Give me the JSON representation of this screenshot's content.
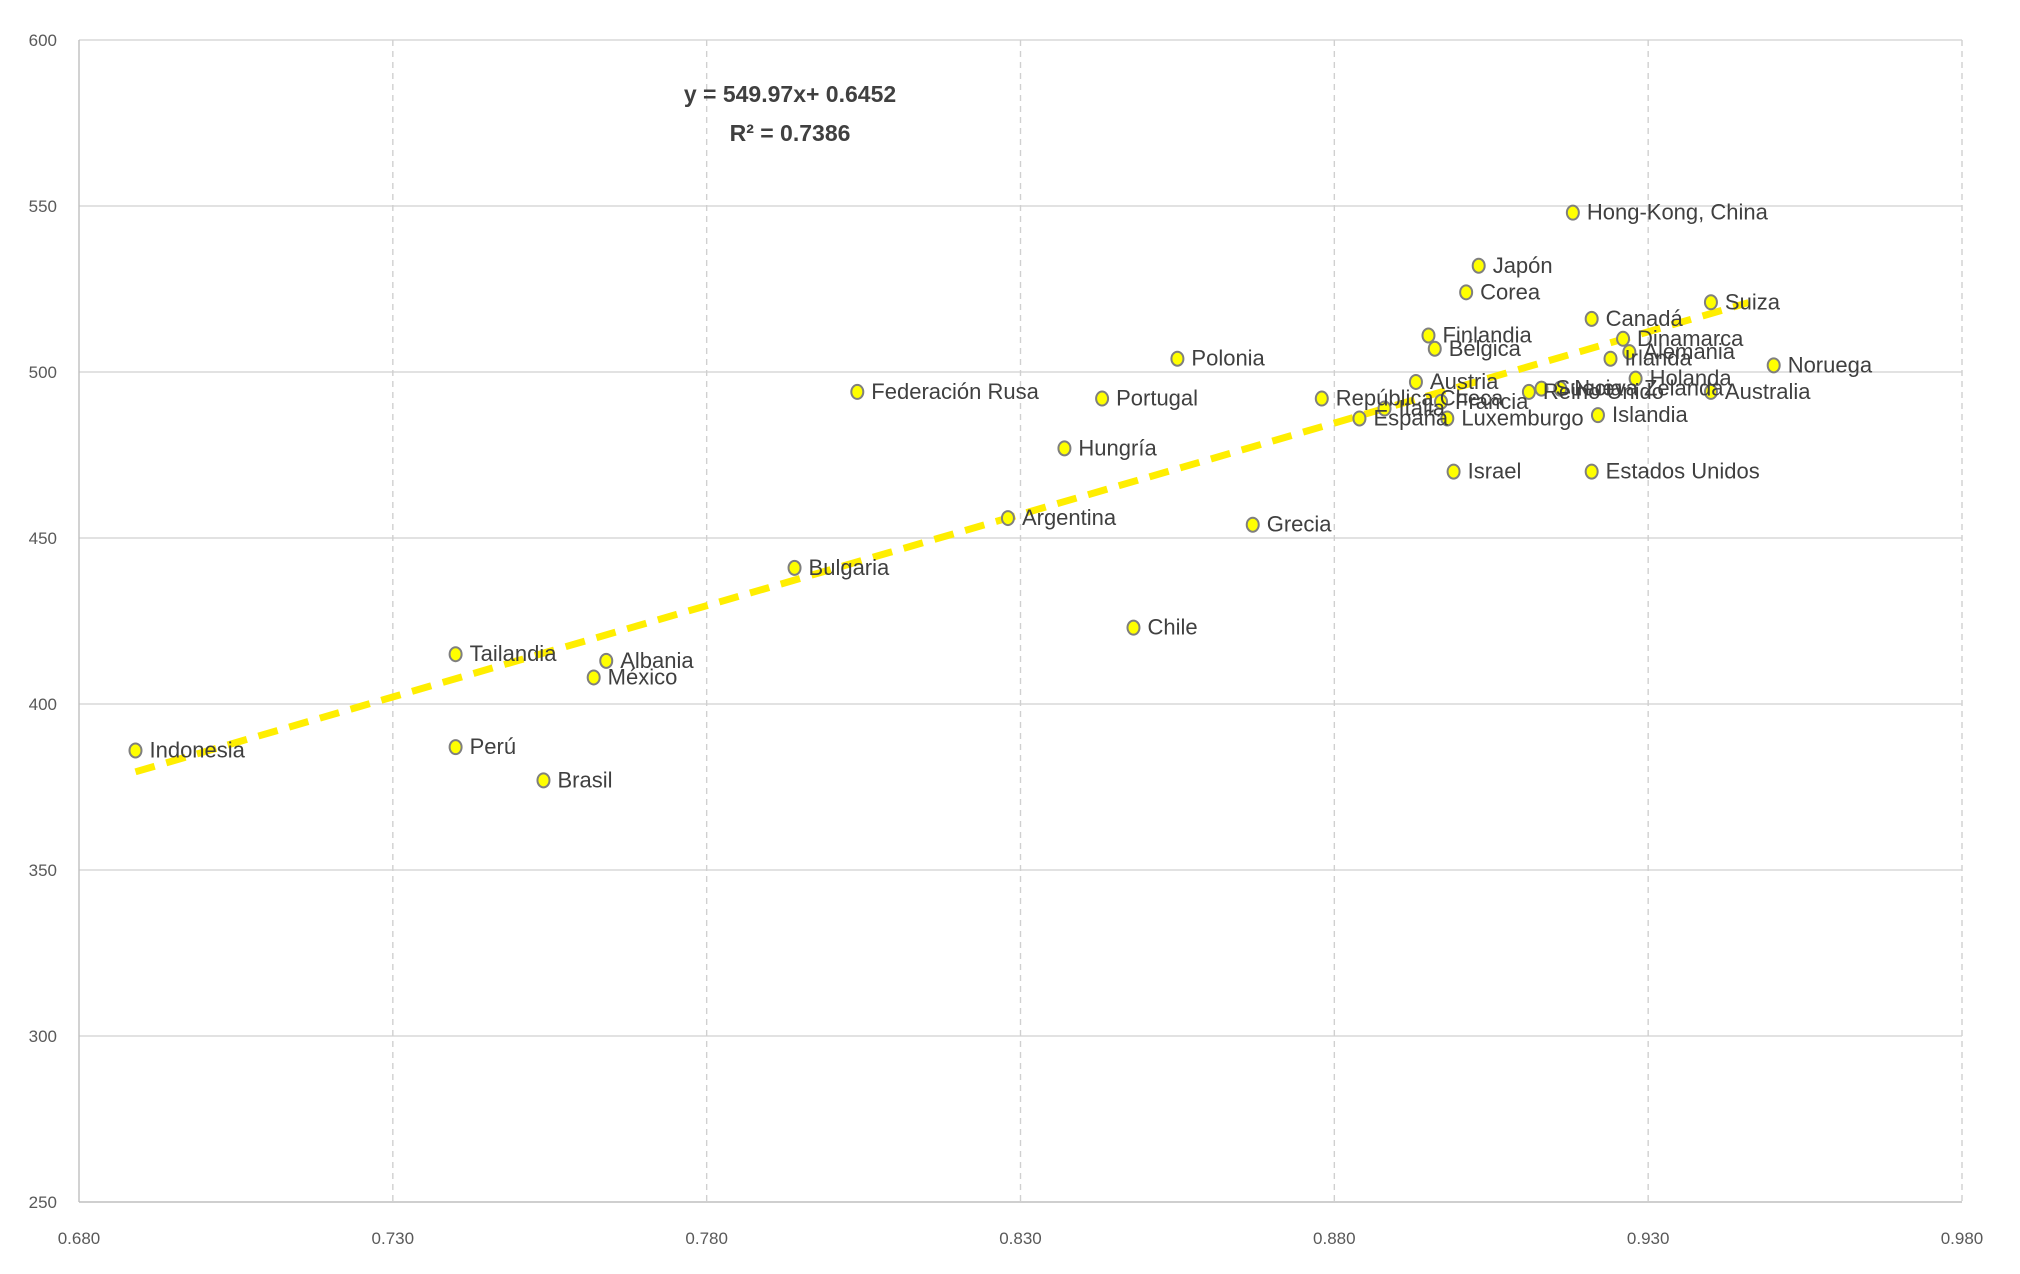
{
  "chart_data": {
    "type": "scatter",
    "title": "",
    "xlabel": "",
    "ylabel": "",
    "xlim": [
      0.68,
      0.98
    ],
    "ylim": [
      250,
      600
    ],
    "x_ticks": [
      "0.680",
      "0.730",
      "0.780",
      "0.830",
      "0.880",
      "0.930",
      "0.980"
    ],
    "y_ticks": [
      "250",
      "300",
      "350",
      "400",
      "450",
      "500",
      "550",
      "600"
    ],
    "x_tick_values": [
      0.68,
      0.73,
      0.78,
      0.83,
      0.88,
      0.93,
      0.98
    ],
    "y_tick_values": [
      250,
      300,
      350,
      400,
      450,
      500,
      550,
      600
    ],
    "grid": {
      "horizontal": true,
      "vertical": true,
      "vertical_style": "dashed"
    },
    "trendline": {
      "type": "linear",
      "equation": "y = 549.97x+ 0.6452",
      "r_squared": "R² = 0.7386",
      "slope": 549.97,
      "intercept": 0.6452,
      "x_range": [
        0.689,
        0.946
      ],
      "color": "#ffee00",
      "style": "dashed"
    },
    "marker_color": "#ffff00",
    "points": [
      {
        "label": "Indonesia",
        "x": 0.689,
        "y": 386
      },
      {
        "label": "Tailandia",
        "x": 0.74,
        "y": 415
      },
      {
        "label": "Perú",
        "x": 0.74,
        "y": 387
      },
      {
        "label": "Brasil",
        "x": 0.754,
        "y": 377
      },
      {
        "label": "Albania",
        "x": 0.764,
        "y": 413
      },
      {
        "label": "México",
        "x": 0.762,
        "y": 408
      },
      {
        "label": "Bulgaria",
        "x": 0.794,
        "y": 441
      },
      {
        "label": "Federación Rusa",
        "x": 0.804,
        "y": 494
      },
      {
        "label": "Argentina",
        "x": 0.828,
        "y": 456
      },
      {
        "label": "Hungría",
        "x": 0.837,
        "y": 477
      },
      {
        "label": "Portugal",
        "x": 0.843,
        "y": 492
      },
      {
        "label": "Chile",
        "x": 0.848,
        "y": 423
      },
      {
        "label": "Polonia",
        "x": 0.855,
        "y": 504
      },
      {
        "label": "Grecia",
        "x": 0.867,
        "y": 454
      },
      {
        "label": "República Checa",
        "x": 0.878,
        "y": 492
      },
      {
        "label": "España",
        "x": 0.884,
        "y": 486
      },
      {
        "label": "Italia",
        "x": 0.888,
        "y": 489
      },
      {
        "label": "Austria",
        "x": 0.893,
        "y": 497
      },
      {
        "label": "Francia",
        "x": 0.897,
        "y": 491
      },
      {
        "label": "Finlandia",
        "x": 0.895,
        "y": 511
      },
      {
        "label": "Bélgica",
        "x": 0.896,
        "y": 507
      },
      {
        "label": "Luxemburgo",
        "x": 0.898,
        "y": 486
      },
      {
        "label": "Israel",
        "x": 0.899,
        "y": 470
      },
      {
        "label": "Corea",
        "x": 0.901,
        "y": 524
      },
      {
        "label": "Japón",
        "x": 0.903,
        "y": 532
      },
      {
        "label": "Reino Unido",
        "x": 0.911,
        "y": 494
      },
      {
        "label": "Suecia",
        "x": 0.913,
        "y": 495
      },
      {
        "label": "Nueva Zelanda",
        "x": 0.916,
        "y": 495
      },
      {
        "label": "Hong-Kong, China",
        "x": 0.918,
        "y": 548
      },
      {
        "label": "Estados Unidos",
        "x": 0.921,
        "y": 470
      },
      {
        "label": "Canadá",
        "x": 0.921,
        "y": 516
      },
      {
        "label": "Islandia",
        "x": 0.922,
        "y": 487
      },
      {
        "label": "Irlanda",
        "x": 0.924,
        "y": 504
      },
      {
        "label": "Dinamarca",
        "x": 0.926,
        "y": 510
      },
      {
        "label": "Alemania",
        "x": 0.927,
        "y": 506
      },
      {
        "label": "Holanda",
        "x": 0.928,
        "y": 498
      },
      {
        "label": "Australia",
        "x": 0.94,
        "y": 494
      },
      {
        "label": "Suiza",
        "x": 0.94,
        "y": 521
      },
      {
        "label": "Noruega",
        "x": 0.95,
        "y": 502
      }
    ]
  }
}
